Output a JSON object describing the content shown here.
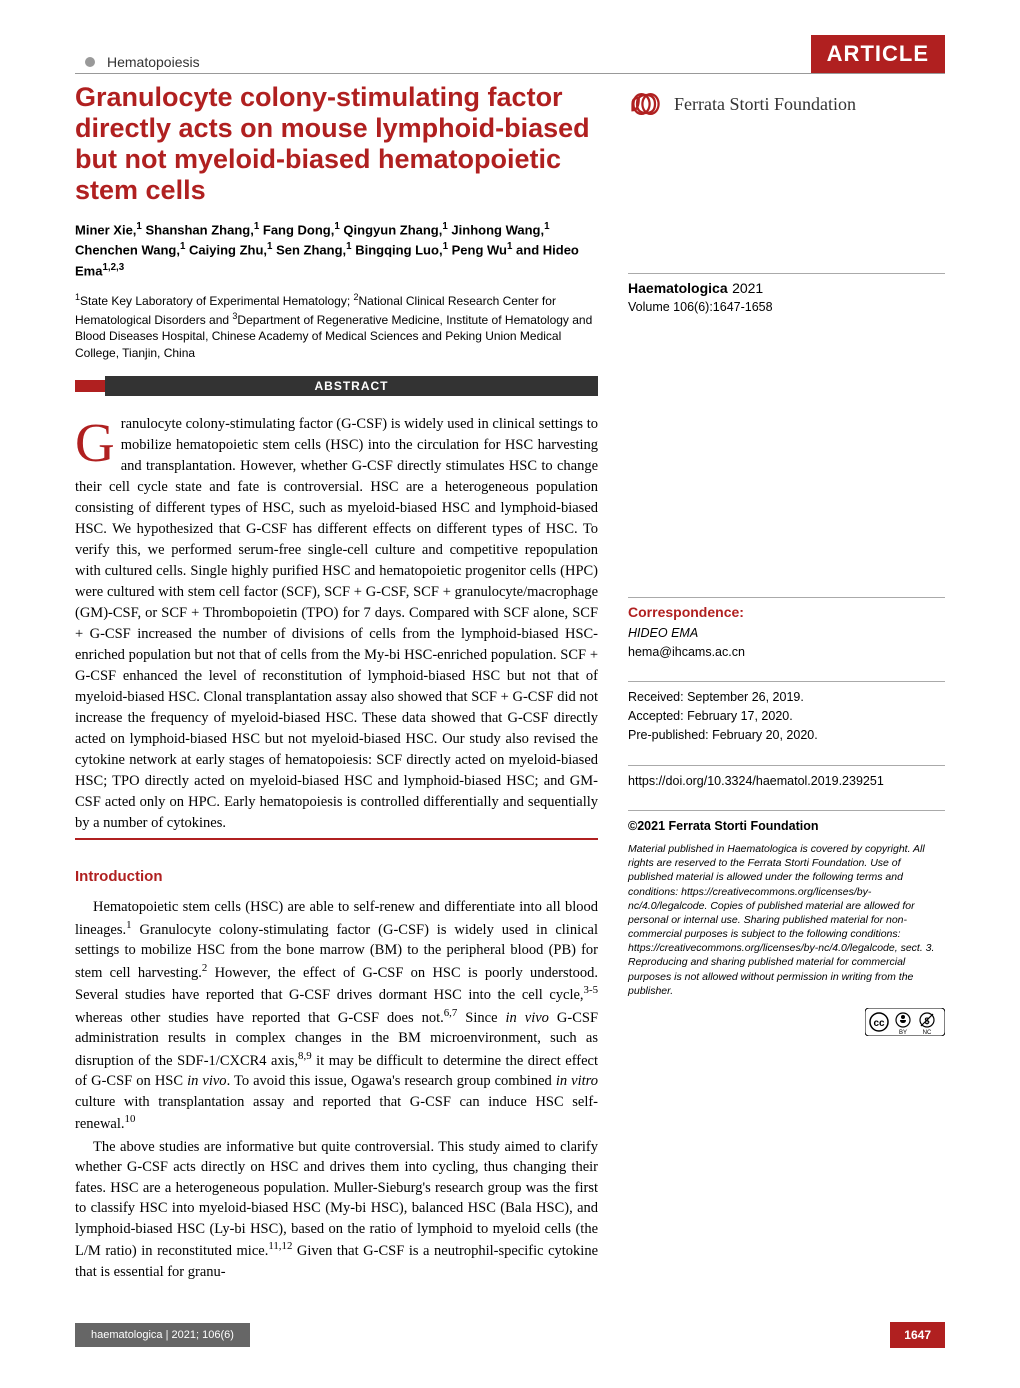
{
  "header": {
    "section_label": "Hematopoiesis",
    "banner": "ARTICLE"
  },
  "title": "Granulocyte colony-stimulating factor directly acts on mouse lymphoid-biased but not myeloid-biased hematopoietic stem cells",
  "authors_html": "Miner Xie,<sup>1</sup> Shanshan Zhang,<sup>1</sup> Fang Dong,<sup>1</sup> Qingyun Zhang,<sup>1</sup> Jinhong Wang,<sup>1</sup> Chenchen Wang,<sup>1</sup> Caiying Zhu,<sup>1</sup> Sen Zhang,<sup>1</sup> Bingqing Luo,<sup>1</sup> Peng Wu<sup>1</sup> and Hideo Ema<sup>1,2,3</sup>",
  "affiliations_html": "<sup>1</sup>State Key Laboratory of Experimental Hematology; <sup>2</sup>National Clinical Research Center for Hematological Disorders and <sup>3</sup>Department of Regenerative Medicine, Institute of Hematology and Blood Diseases Hospital, Chinese Academy of Medical Sciences and Peking Union Medical College, Tianjin, China",
  "abstract": {
    "label": "ABSTRACT",
    "dropcap": "G",
    "body": "ranulocyte colony-stimulating factor (G-CSF) is widely used in clinical settings to mobilize hematopoietic stem cells (HSC) into the circulation for HSC harvesting and transplantation. However, whether G-CSF directly stimulates HSC to change their cell cycle state and fate is controversial. HSC are a heterogeneous population consisting of different types of HSC, such as myeloid-biased HSC and lymphoid-biased HSC. We hypothesized that G-CSF has different effects on different types of HSC. To verify this, we performed serum-free single-cell culture and competitive repopulation with cultured cells. Single highly purified HSC and hematopoietic progenitor cells (HPC) were cultured with stem cell factor (SCF), SCF + G-CSF, SCF + granulocyte/macrophage (GM)-CSF, or SCF + Thrombopoietin (TPO) for 7 days. Compared with SCF alone, SCF + G-CSF increased the number of divisions of cells from the lymphoid-biased HSC-enriched population but not that of cells from the My-bi HSC-enriched population. SCF + G-CSF enhanced the level of reconstitution of lymphoid-biased HSC but not that of myeloid-biased HSC. Clonal transplantation assay also showed that SCF + G-CSF did not increase the frequency of myeloid-biased HSC. These data showed that G-CSF directly acted on lymphoid-biased HSC but not myeloid-biased HSC. Our study also revised the cytokine network at early stages of hematopoiesis: SCF directly acted on myeloid-biased HSC; TPO directly acted on myeloid-biased HSC and lymphoid-biased HSC; and GM-CSF acted only on HPC. Early hematopoiesis is controlled differentially and sequentially by a number of cytokines."
  },
  "introduction": {
    "heading": "Introduction",
    "paragraphs": [
      "Hematopoietic stem cells (HSC) are able to self-renew and differentiate into all blood lineages.<sup>1</sup> Granulocyte colony-stimulating factor (G-CSF) is widely used in clinical settings to mobilize HSC from the bone marrow (BM) to the peripheral blood (PB) for stem cell harvesting.<sup>2</sup> However, the effect of G-CSF on HSC is poorly understood. Several studies have reported that G-CSF drives dormant HSC into the cell cycle,<sup>3-5</sup> whereas other studies have reported that G-CSF does not.<sup>6,7</sup> Since <i>in vivo</i> G-CSF administration results in complex changes in the BM microenvironment, such as disruption of the SDF-1/CXCR4 axis,<sup>8,9</sup> it may be difficult to determine the direct effect of G-CSF on HSC <i>in vivo</i>. To avoid this issue, Ogawa's research group combined <i>in vitro</i> culture with transplantation assay and reported that G-CSF can induce HSC self-renewal.<sup>10</sup>",
      "The above studies are informative but quite controversial. This study aimed to clarify whether G-CSF acts directly on HSC and drives them into cycling, thus changing their fates. HSC are a heterogeneous population. Muller-Sieburg's research group was the first to classify HSC into myeloid-biased HSC (My-bi HSC), balanced HSC (Bala HSC), and lymphoid-biased HSC (Ly-bi HSC), based on the ratio of lymphoid to myeloid cells (the L/M ratio) in reconstituted mice.<sup>11,12</sup> Given that G-CSF is a neutrophil-specific cytokine that is essential for granu-"
    ]
  },
  "sidebar": {
    "foundation": "Ferrata Storti Foundation",
    "journal": {
      "name": "Haematologica",
      "year": "2021",
      "volume": "Volume 106(6):1647-1658"
    },
    "correspondence": {
      "label": "Correspondence:",
      "name": "HIDEO EMA",
      "email": "hema@ihcams.ac.cn"
    },
    "dates": {
      "received": "Received: September 26, 2019.",
      "accepted": "Accepted: February 17, 2020.",
      "prepublished": "Pre-published: February 20, 2020."
    },
    "doi": "https://doi.org/10.3324/haematol.2019.239251",
    "copyright_title": "©2021 Ferrata Storti Foundation",
    "copyright_body": "Material published in Haematologica is covered by copyright. All rights are reserved to the Ferrata Storti Foundation. Use of published material is allowed under the following terms and conditions: https://creativecommons.org/licenses/by-nc/4.0/legalcode. Copies of published material are allowed for personal or internal use. Sharing published material for non-commercial purposes is subject to the following conditions: https://creativecommons.org/licenses/by-nc/4.0/legalcode, sect. 3. Reproducing and sharing published material for commercial purposes is not allowed without permission in writing from the publisher."
  },
  "footer": {
    "left": "haematologica | 2021; 106(6)",
    "page": "1647"
  },
  "colors": {
    "accent": "#b02020",
    "banner_bg": "#b02020",
    "footer_gray": "#666666"
  }
}
